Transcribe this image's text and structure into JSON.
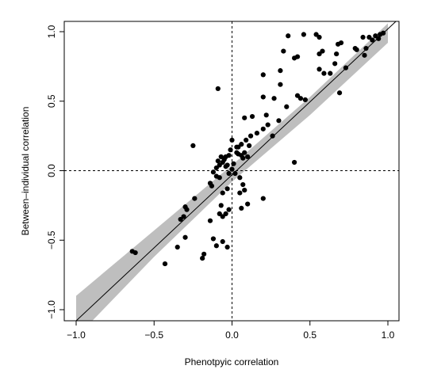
{
  "chart_data": {
    "type": "scatter",
    "title": "",
    "xlabel": "Phenotpyic correlation",
    "ylabel": "Between–individual correlation",
    "xlim": [
      -1.0,
      1.0
    ],
    "ylim": [
      -1.0,
      1.0
    ],
    "x_ticks": [
      "−1.0",
      "−0.5",
      "0.0",
      "0.5",
      "1.0"
    ],
    "y_ticks": [
      "−1.0",
      "−0.5",
      "0.0",
      "0.5",
      "1.0"
    ],
    "x_tick_values": [
      -1.0,
      -0.5,
      0.0,
      0.5,
      1.0
    ],
    "y_tick_values": [
      -1.0,
      -0.5,
      0.0,
      0.5,
      1.0
    ],
    "grid": false,
    "legend": "none",
    "reference_lines": {
      "x": 0,
      "y": 0,
      "style": "dashed"
    },
    "fit_line": {
      "x": [
        -1.0,
        1.0
      ],
      "y": [
        -1.08,
        1.02
      ]
    },
    "confidence_band": {
      "x": [
        -1.0,
        -0.5,
        0.0,
        0.5,
        1.0
      ],
      "lower": [
        -1.2,
        -0.62,
        -0.08,
        0.4,
        0.92
      ],
      "upper": [
        -0.9,
        -0.43,
        0.04,
        0.53,
        1.06
      ]
    },
    "points": [
      {
        "x": 0.33,
        "y": 0.86
      },
      {
        "x": 0.36,
        "y": 0.97
      },
      {
        "x": 0.46,
        "y": 0.98
      },
      {
        "x": 0.54,
        "y": 0.98
      },
      {
        "x": 0.56,
        "y": 0.96
      },
      {
        "x": 0.4,
        "y": 0.81
      },
      {
        "x": 0.42,
        "y": 0.82
      },
      {
        "x": 0.56,
        "y": 0.84
      },
      {
        "x": 0.58,
        "y": 0.86
      },
      {
        "x": 0.68,
        "y": 0.91
      },
      {
        "x": 0.7,
        "y": 0.92
      },
      {
        "x": 0.67,
        "y": 0.84
      },
      {
        "x": 0.66,
        "y": 0.77
      },
      {
        "x": 0.73,
        "y": 0.74
      },
      {
        "x": 0.59,
        "y": 0.7
      },
      {
        "x": 0.63,
        "y": 0.7
      },
      {
        "x": 0.56,
        "y": 0.73
      },
      {
        "x": 0.31,
        "y": 0.72
      },
      {
        "x": 0.2,
        "y": 0.69
      },
      {
        "x": 0.31,
        "y": 0.62
      },
      {
        "x": 0.79,
        "y": 0.88
      },
      {
        "x": 0.8,
        "y": 0.87
      },
      {
        "x": 0.84,
        "y": 0.96
      },
      {
        "x": 0.88,
        "y": 0.96
      },
      {
        "x": 0.9,
        "y": 0.94
      },
      {
        "x": 0.92,
        "y": 0.97
      },
      {
        "x": 0.94,
        "y": 0.95
      },
      {
        "x": 0.95,
        "y": 0.98
      },
      {
        "x": 0.97,
        "y": 0.99
      },
      {
        "x": 0.86,
        "y": 0.88
      },
      {
        "x": 0.85,
        "y": 0.83
      },
      {
        "x": 0.69,
        "y": 0.56
      },
      {
        "x": 0.47,
        "y": 0.51
      },
      {
        "x": 0.44,
        "y": 0.52
      },
      {
        "x": 0.42,
        "y": 0.54
      },
      {
        "x": 0.35,
        "y": 0.46
      },
      {
        "x": 0.2,
        "y": 0.53
      },
      {
        "x": 0.22,
        "y": 0.4
      },
      {
        "x": 0.27,
        "y": 0.52
      },
      {
        "x": 0.13,
        "y": 0.39
      },
      {
        "x": 0.08,
        "y": 0.38
      },
      {
        "x": 0.3,
        "y": 0.36
      },
      {
        "x": 0.23,
        "y": 0.33
      },
      {
        "x": 0.2,
        "y": 0.3
      },
      {
        "x": 0.16,
        "y": 0.27
      },
      {
        "x": 0.12,
        "y": 0.25
      },
      {
        "x": 0.26,
        "y": 0.25
      },
      {
        "x": 0.09,
        "y": 0.22
      },
      {
        "x": 0.11,
        "y": 0.18
      },
      {
        "x": 0.06,
        "y": 0.19
      },
      {
        "x": 0.04,
        "y": 0.17
      },
      {
        "x": 0.03,
        "y": 0.17
      },
      {
        "x": 0.0,
        "y": 0.22
      },
      {
        "x": -0.01,
        "y": 0.15
      },
      {
        "x": -0.02,
        "y": 0.11
      },
      {
        "x": -0.04,
        "y": 0.1
      },
      {
        "x": -0.05,
        "y": 0.08
      },
      {
        "x": -0.07,
        "y": 0.1
      },
      {
        "x": -0.08,
        "y": 0.04
      },
      {
        "x": -0.06,
        "y": 0.06
      },
      {
        "x": -0.09,
        "y": 0.07
      },
      {
        "x": -0.1,
        "y": 0.02
      },
      {
        "x": -0.03,
        "y": 0.04
      },
      {
        "x": -0.04,
        "y": 0.03
      },
      {
        "x": -0.02,
        "y": -0.02
      },
      {
        "x": 0.0,
        "y": 0.01
      },
      {
        "x": 0.01,
        "y": 0.05
      },
      {
        "x": 0.03,
        "y": 0.13
      },
      {
        "x": 0.04,
        "y": 0.12
      },
      {
        "x": 0.06,
        "y": 0.11
      },
      {
        "x": 0.07,
        "y": 0.09
      },
      {
        "x": 0.08,
        "y": 0.13
      },
      {
        "x": 0.1,
        "y": 0.1
      },
      {
        "x": 0.02,
        "y": -0.02
      },
      {
        "x": -0.08,
        "y": -0.05
      },
      {
        "x": -0.12,
        "y": -0.01
      },
      {
        "x": -0.1,
        "y": -0.04
      },
      {
        "x": -0.13,
        "y": -0.11
      },
      {
        "x": -0.14,
        "y": -0.09
      },
      {
        "x": 0.05,
        "y": -0.05
      },
      {
        "x": 0.07,
        "y": -0.1
      },
      {
        "x": 0.08,
        "y": -0.14
      },
      {
        "x": 0.05,
        "y": -0.16
      },
      {
        "x": -0.06,
        "y": -0.16
      },
      {
        "x": -0.03,
        "y": -0.13
      },
      {
        "x": -0.07,
        "y": -0.25
      },
      {
        "x": -0.08,
        "y": -0.31
      },
      {
        "x": -0.06,
        "y": -0.33
      },
      {
        "x": -0.02,
        "y": -0.28
      },
      {
        "x": -0.04,
        "y": -0.31
      },
      {
        "x": -0.14,
        "y": -0.36
      },
      {
        "x": -0.1,
        "y": -0.54
      },
      {
        "x": -0.12,
        "y": -0.49
      },
      {
        "x": -0.06,
        "y": -0.51
      },
      {
        "x": -0.03,
        "y": -0.55
      },
      {
        "x": 0.1,
        "y": -0.24
      },
      {
        "x": 0.2,
        "y": -0.2
      },
      {
        "x": 0.06,
        "y": -0.27
      },
      {
        "x": -0.24,
        "y": -0.2
      },
      {
        "x": -0.29,
        "y": -0.28
      },
      {
        "x": -0.3,
        "y": -0.26
      },
      {
        "x": -0.31,
        "y": -0.33
      },
      {
        "x": -0.33,
        "y": -0.35
      },
      {
        "x": -0.3,
        "y": -0.48
      },
      {
        "x": -0.35,
        "y": -0.55
      },
      {
        "x": -0.18,
        "y": -0.6
      },
      {
        "x": -0.19,
        "y": -0.63
      },
      {
        "x": -0.43,
        "y": -0.67
      },
      {
        "x": -0.64,
        "y": -0.58
      },
      {
        "x": -0.62,
        "y": -0.59
      },
      {
        "x": -0.25,
        "y": 0.18
      },
      {
        "x": -0.09,
        "y": 0.59
      },
      {
        "x": 0.4,
        "y": 0.06
      }
    ]
  }
}
